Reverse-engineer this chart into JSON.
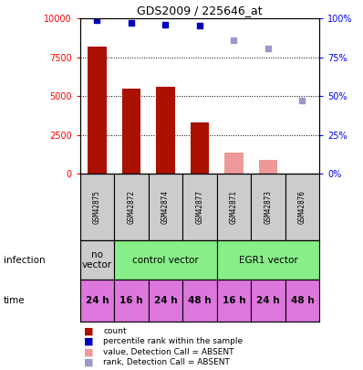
{
  "title": "GDS2009 / 225646_at",
  "samples": [
    "GSM42875",
    "GSM42872",
    "GSM42874",
    "GSM42877",
    "GSM42871",
    "GSM42873",
    "GSM42876"
  ],
  "bar_values": [
    8200,
    5500,
    5600,
    3300,
    1400,
    900,
    30
  ],
  "bar_is_absent": [
    false,
    false,
    false,
    false,
    true,
    true,
    true
  ],
  "dot_values": [
    9900,
    9700,
    9600,
    9550,
    8600,
    8100,
    4700
  ],
  "dot_is_absent": [
    false,
    false,
    false,
    false,
    true,
    true,
    true
  ],
  "ylim": [
    0,
    10000
  ],
  "yticks": [
    0,
    2500,
    5000,
    7500,
    10000
  ],
  "ytick_labels_left": [
    "0",
    "2500",
    "5000",
    "7500",
    "10000"
  ],
  "ytick_labels_right": [
    "0%",
    "25%",
    "50%",
    "75%",
    "100%"
  ],
  "infection_groups": [
    {
      "label": "no\nvector",
      "start": 0,
      "end": 1,
      "color": "#cccccc"
    },
    {
      "label": "control vector",
      "start": 1,
      "end": 4,
      "color": "#88ee88"
    },
    {
      "label": "EGR1 vector",
      "start": 4,
      "end": 7,
      "color": "#88ee88"
    }
  ],
  "time_labels": [
    "24 h",
    "16 h",
    "24 h",
    "48 h",
    "16 h",
    "24 h",
    "48 h"
  ],
  "time_color": "#dd77dd",
  "bar_color_present": "#aa1100",
  "bar_color_absent": "#ee9999",
  "dot_color_present": "#0000bb",
  "dot_color_absent": "#9999cc",
  "gsm_bg_color": "#cccccc",
  "legend_items": [
    {
      "label": "count",
      "color": "#aa1100"
    },
    {
      "label": "percentile rank within the sample",
      "color": "#0000bb"
    },
    {
      "label": "value, Detection Call = ABSENT",
      "color": "#ee9999"
    },
    {
      "label": "rank, Detection Call = ABSENT",
      "color": "#9999cc"
    }
  ]
}
